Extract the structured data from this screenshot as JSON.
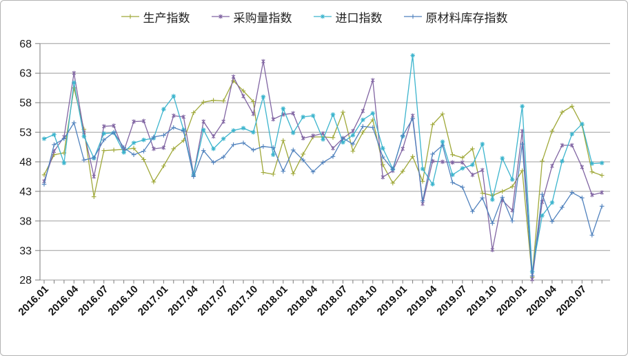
{
  "chart_data": {
    "type": "line",
    "title": "",
    "legend_position": "top",
    "grid": true,
    "ylim": [
      28,
      68
    ],
    "ytick_step": 5,
    "x_tick_every": 3,
    "x": [
      "2016.01",
      "2016.02",
      "2016.03",
      "2016.04",
      "2016.05",
      "2016.06",
      "2016.07",
      "2016.08",
      "2016.09",
      "2016.10",
      "2016.11",
      "2016.12",
      "2017.01",
      "2017.02",
      "2017.03",
      "2017.04",
      "2017.05",
      "2017.06",
      "2017.07",
      "2017.08",
      "2017.09",
      "2017.10",
      "2017.11",
      "2017.12",
      "2018.01",
      "2018.02",
      "2018.03",
      "2018.04",
      "2018.05",
      "2018.06",
      "2018.07",
      "2018.08",
      "2018.09",
      "2018.10",
      "2018.11",
      "2018.12",
      "2019.01",
      "2019.02",
      "2019.03",
      "2019.04",
      "2019.05",
      "2019.06",
      "2019.07",
      "2019.08",
      "2019.09",
      "2019.10",
      "2019.11",
      "2019.12",
      "2020.01",
      "2020.02",
      "2020.03",
      "2020.04",
      "2020.05",
      "2020.06",
      "2020.07",
      "2020.08",
      "2020.09"
    ],
    "series": [
      {
        "key": "production-index",
        "name": "生产指数",
        "color": "#9fa838",
        "marker": "plus",
        "values": [
          45.8,
          49.2,
          49.5,
          60.5,
          53.5,
          42.1,
          49.9,
          50.0,
          50.1,
          50.3,
          48.4,
          44.6,
          47.3,
          50.2,
          51.6,
          56.3,
          58.1,
          58.4,
          58.3,
          61.7,
          60.0,
          58.2,
          46.2,
          45.9,
          51.6,
          46.0,
          49.3,
          52.2,
          52.2,
          52.1,
          56.4,
          49.8,
          53.0,
          55.1,
          47.5,
          44.4,
          46.4,
          48.9,
          44.7,
          54.3,
          56.1,
          49.2,
          48.7,
          50.2,
          42.7,
          42.3,
          43.0,
          43.8,
          46.5,
          28.5,
          48.1,
          53.2,
          56.4,
          57.4,
          54.2,
          46.3,
          45.7
        ]
      },
      {
        "key": "purchasing-volume-index",
        "name": "采购量指数",
        "color": "#8064a2",
        "marker": "x",
        "values": [
          44.7,
          49.8,
          52.2,
          63.0,
          53.0,
          45.5,
          54.0,
          54.1,
          49.8,
          54.8,
          54.9,
          50.2,
          50.4,
          55.8,
          55.6,
          45.9,
          54.8,
          52.3,
          54.8,
          62.4,
          59.1,
          56.1,
          65.0,
          55.2,
          56.0,
          56.2,
          52.0,
          52.4,
          52.8,
          50.3,
          52.0,
          53.2,
          56.6,
          61.8,
          45.4,
          46.5,
          50.2,
          55.8,
          40.9,
          48.1,
          48.0,
          47.9,
          47.9,
          45.8,
          46.6,
          33.1,
          41.5,
          39.8,
          53.2,
          28.1,
          41.2,
          47.3,
          50.8,
          50.8,
          47.1,
          42.4,
          42.8
        ]
      },
      {
        "key": "import-index",
        "name": "进口指数",
        "color": "#3bb4cd",
        "marker": "asterisk",
        "values": [
          51.9,
          52.6,
          47.8,
          61.4,
          52.3,
          48.6,
          52.8,
          52.9,
          49.6,
          51.2,
          51.7,
          52.0,
          56.9,
          59.1,
          53.4,
          45.8,
          53.4,
          50.2,
          51.9,
          53.3,
          53.7,
          53.0,
          59.0,
          49.2,
          57.0,
          52.9,
          55.6,
          55.8,
          51.8,
          56.0,
          51.3,
          52.5,
          55.1,
          56.2,
          50.3,
          46.8,
          52.3,
          66.0,
          46.8,
          44.2,
          51.4,
          45.8,
          46.9,
          47.5,
          51.0,
          41.6,
          48.6,
          45.0,
          57.4,
          29.4,
          38.9,
          41.1,
          48.1,
          52.7,
          54.4,
          47.7,
          47.8
        ]
      },
      {
        "key": "raw-material-inventory-index",
        "name": "原材料库存指数",
        "color": "#4f81bd",
        "marker": "plus",
        "values": [
          44.2,
          50.9,
          51.9,
          54.6,
          48.3,
          48.7,
          51.7,
          53.0,
          50.4,
          49.2,
          49.8,
          52.2,
          52.5,
          53.8,
          53.2,
          45.5,
          49.9,
          47.9,
          48.8,
          50.9,
          51.2,
          50.0,
          50.6,
          50.4,
          46.4,
          50.0,
          48.3,
          46.3,
          47.9,
          48.9,
          52.0,
          51.0,
          54.0,
          53.8,
          48.8,
          46.7,
          52.4,
          55.3,
          41.4,
          49.3,
          50.8,
          44.5,
          43.7,
          39.6,
          41.9,
          37.6,
          42.0,
          38.0,
          51.0,
          28.7,
          42.5,
          37.9,
          40.3,
          42.8,
          41.9,
          35.6,
          40.5
        ]
      }
    ],
    "axis_color": "#7a7a7a",
    "grid_color": "#9c9c9c"
  }
}
